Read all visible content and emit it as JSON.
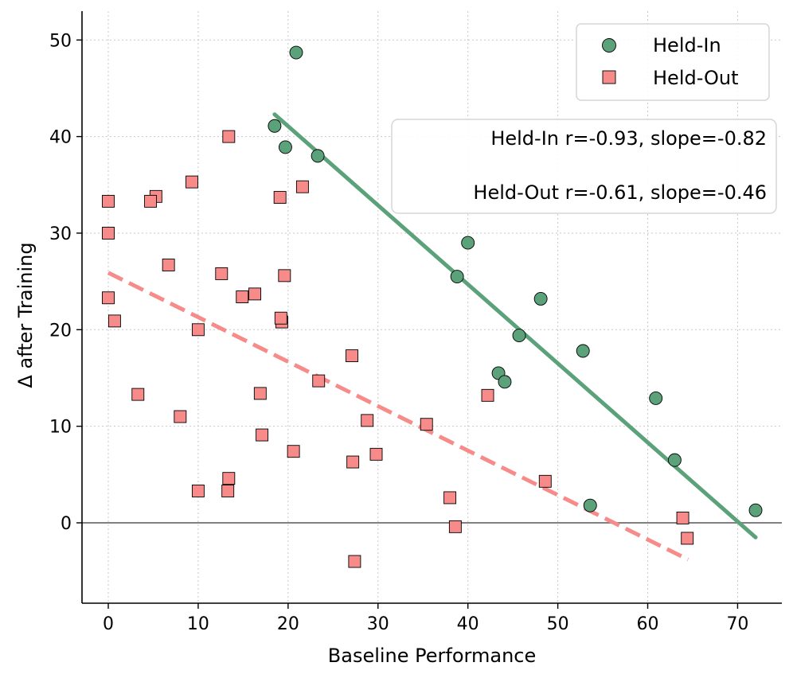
{
  "chart_data": {
    "type": "scatter",
    "title": "",
    "xlabel": "Baseline Performance",
    "ylabel": "Δ after Training",
    "xlim": [
      -3,
      75
    ],
    "ylim": [
      -8.5,
      53
    ],
    "xticks": [
      0,
      10,
      20,
      30,
      40,
      50,
      60,
      70
    ],
    "yticks": [
      0,
      10,
      20,
      30,
      40,
      50
    ],
    "grid": true,
    "legend_position": "top-right",
    "colors": {
      "held_in": "#5ba27a",
      "held_out": "#f78b8a",
      "zero_line": "#808080",
      "grid": "#c8c8c8"
    },
    "series": [
      {
        "name": "Held-In",
        "marker": "circle",
        "points": [
          [
            20.9,
            48.7
          ],
          [
            18.5,
            41.1
          ],
          [
            19.7,
            38.9
          ],
          [
            23.3,
            38.0
          ],
          [
            40.0,
            29.0
          ],
          [
            38.8,
            25.5
          ],
          [
            48.1,
            23.2
          ],
          [
            45.7,
            19.4
          ],
          [
            52.8,
            17.8
          ],
          [
            43.4,
            15.5
          ],
          [
            44.1,
            14.6
          ],
          [
            60.9,
            12.9
          ],
          [
            63.0,
            6.5
          ],
          [
            53.6,
            1.8
          ],
          [
            72.0,
            1.3
          ]
        ],
        "fit": {
          "style": "solid",
          "x": [
            18.5,
            72.0
          ],
          "y": [
            42.3,
            -1.5
          ]
        }
      },
      {
        "name": "Held-Out",
        "marker": "square",
        "points": [
          [
            13.4,
            40.0
          ],
          [
            9.3,
            35.3
          ],
          [
            21.6,
            34.8
          ],
          [
            5.3,
            33.8
          ],
          [
            4.7,
            33.3
          ],
          [
            0.0,
            33.3
          ],
          [
            19.1,
            33.7
          ],
          [
            0.0,
            30.0
          ],
          [
            6.7,
            26.7
          ],
          [
            12.6,
            25.8
          ],
          [
            19.6,
            25.6
          ],
          [
            16.3,
            23.7
          ],
          [
            14.9,
            23.4
          ],
          [
            0.0,
            23.3
          ],
          [
            19.3,
            20.8
          ],
          [
            19.2,
            21.2
          ],
          [
            0.7,
            20.9
          ],
          [
            10.0,
            20.0
          ],
          [
            27.1,
            17.3
          ],
          [
            23.4,
            14.7
          ],
          [
            3.3,
            13.3
          ],
          [
            16.9,
            13.4
          ],
          [
            42.2,
            13.2
          ],
          [
            8.0,
            11.0
          ],
          [
            28.8,
            10.6
          ],
          [
            35.4,
            10.2
          ],
          [
            17.1,
            9.1
          ],
          [
            20.6,
            7.4
          ],
          [
            29.8,
            7.1
          ],
          [
            27.2,
            6.3
          ],
          [
            13.4,
            4.6
          ],
          [
            48.6,
            4.3
          ],
          [
            10.0,
            3.3
          ],
          [
            13.3,
            3.3
          ],
          [
            38.0,
            2.6
          ],
          [
            63.9,
            0.5
          ],
          [
            38.6,
            -0.4
          ],
          [
            64.4,
            -1.6
          ],
          [
            27.4,
            -4.0
          ]
        ],
        "fit": {
          "style": "dashed",
          "x": [
            0.0,
            64.5
          ],
          "y": [
            25.9,
            -3.8
          ]
        }
      }
    ],
    "annotations": [
      "Held-In r=-0.93, slope=-0.82",
      "Held-Out r=-0.61, slope=-0.46"
    ]
  }
}
